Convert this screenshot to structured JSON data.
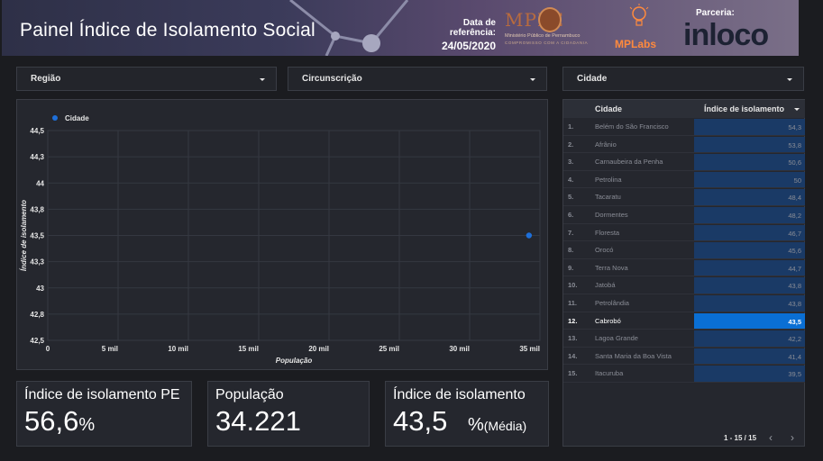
{
  "header": {
    "title": "Painel Índice de Isolamento Social",
    "ref_label": "Data de referência:",
    "ref_date": "24/05/2020",
    "mppe_logo": "MPPE",
    "mppe_sub1": "Ministério Público de Pernambuco",
    "mppe_sub2": "COMPROMISSO COM A CIDADANIA",
    "mplabs_logo": "MPLabs",
    "parceria_label": "Parceria:",
    "inloco_logo": "inloco"
  },
  "filters": {
    "regiao": "Região",
    "circunscricao": "Circunscrição",
    "cidade": "Cidade"
  },
  "chart_data": {
    "type": "scatter",
    "legend": [
      "Cidade"
    ],
    "xlabel": "População",
    "ylabel": "Índice de isolamento",
    "xlim": [
      0,
      35000
    ],
    "ylim": [
      42.5,
      44.5
    ],
    "x_ticks": [
      "0",
      "5 mil",
      "10 mil",
      "15 mil",
      "20 mil",
      "25 mil",
      "30 mil",
      "35 mil"
    ],
    "y_ticks": [
      "44,5",
      "44,3",
      "44",
      "43,8",
      "43,5",
      "43,3",
      "43",
      "42,8",
      "42,5"
    ],
    "series": [
      {
        "name": "Cidade",
        "points": [
          {
            "x": 34221,
            "y": 43.5
          }
        ]
      }
    ],
    "color": "#1e6fd9",
    "grid": true
  },
  "table": {
    "col_city": "Cidade",
    "col_index": "Índice de isolamento",
    "rows": [
      {
        "n": "1.",
        "city": "Belém do São Francisco",
        "value": "54,3"
      },
      {
        "n": "2.",
        "city": "Afrânio",
        "value": "53,8"
      },
      {
        "n": "3.",
        "city": "Carnaubeira da Penha",
        "value": "50,6"
      },
      {
        "n": "4.",
        "city": "Petrolina",
        "value": "50"
      },
      {
        "n": "5.",
        "city": "Tacaratu",
        "value": "48,4"
      },
      {
        "n": "6.",
        "city": "Dormentes",
        "value": "48,2"
      },
      {
        "n": "7.",
        "city": "Floresta",
        "value": "46,7"
      },
      {
        "n": "8.",
        "city": "Orocó",
        "value": "45,6"
      },
      {
        "n": "9.",
        "city": "Terra Nova",
        "value": "44,7"
      },
      {
        "n": "10.",
        "city": "Jatobá",
        "value": "43,8"
      },
      {
        "n": "11.",
        "city": "Petrolândia",
        "value": "43,8"
      },
      {
        "n": "12.",
        "city": "Cabrobó",
        "value": "43,5"
      },
      {
        "n": "13.",
        "city": "Lagoa Grande",
        "value": "42,2"
      },
      {
        "n": "14.",
        "city": "Santa Maria da Boa Vista",
        "value": "41,4"
      },
      {
        "n": "15.",
        "city": "Itacuruba",
        "value": "39,5"
      }
    ],
    "selected_index": 11,
    "pager": "1 - 15 / 15"
  },
  "scorecards": {
    "pe_title": "Índice de isolamento PE",
    "pe_value": "56,6",
    "pe_unit": "%",
    "pop_title": "População",
    "pop_value": "34.221",
    "iso_title": "Índice de isolamento",
    "iso_value": "43,5",
    "iso_unit": "%",
    "iso_suffix": "(Média)"
  }
}
